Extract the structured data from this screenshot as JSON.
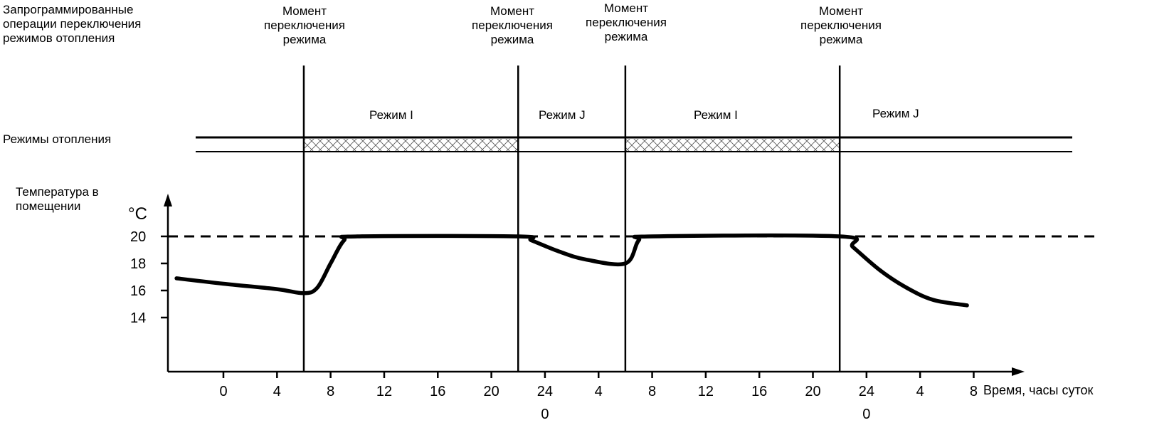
{
  "labels": {
    "programmed_ops": [
      "Запрограммированные",
      "операции переключения",
      "режимов отопления"
    ],
    "switch_moment": [
      "Момент",
      "переключения",
      "режима"
    ],
    "heating_modes": "Режимы отопления",
    "room_temp": [
      "Температура в",
      "помещении"
    ],
    "unit": "°C",
    "x_axis": "Время, часы суток"
  },
  "modes": [
    "Режим I",
    "Режим J",
    "Режим I",
    "Режим J"
  ],
  "switch_times_h": [
    6,
    22,
    30,
    46
  ],
  "y_ticks": [
    20,
    18,
    16,
    14
  ],
  "x_ticks": [
    {
      "t": 0,
      "label": "0"
    },
    {
      "t": 4,
      "label": "4"
    },
    {
      "t": 8,
      "label": "8"
    },
    {
      "t": 12,
      "label": "12"
    },
    {
      "t": 16,
      "label": "16"
    },
    {
      "t": 20,
      "label": "20"
    },
    {
      "t": 24,
      "label": "24",
      "sub": "0"
    },
    {
      "t": 28,
      "label": "4"
    },
    {
      "t": 32,
      "label": "8"
    },
    {
      "t": 36,
      "label": "12"
    },
    {
      "t": 40,
      "label": "16"
    },
    {
      "t": 44,
      "label": "20"
    },
    {
      "t": 48,
      "label": "24",
      "sub": "0"
    },
    {
      "t": 52,
      "label": "4"
    },
    {
      "t": 56,
      "label": "8"
    }
  ],
  "setpoint_c": 20,
  "temperature_curve": [
    [
      -3.5,
      16.9
    ],
    [
      0,
      16.5
    ],
    [
      4,
      16.1
    ],
    [
      6,
      15.8
    ],
    [
      7,
      16.2
    ],
    [
      8,
      18.0
    ],
    [
      9,
      19.7
    ],
    [
      10,
      20.0
    ],
    [
      22,
      20.0
    ],
    [
      23,
      19.7
    ],
    [
      25,
      18.9
    ],
    [
      27,
      18.3
    ],
    [
      30,
      18.0
    ],
    [
      31,
      19.7
    ],
    [
      32,
      20.0
    ],
    [
      46,
      20.0
    ],
    [
      47,
      19.2
    ],
    [
      49,
      17.5
    ],
    [
      51,
      16.2
    ],
    [
      53,
      15.3
    ],
    [
      55.5,
      14.9
    ]
  ]
}
